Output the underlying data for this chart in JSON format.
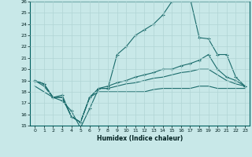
{
  "xlabel": "Humidex (Indice chaleur)",
  "background_color": "#c8e8e8",
  "grid_color": "#b0d4d4",
  "line_color": "#1a6b6b",
  "xlim": [
    -0.5,
    23.5
  ],
  "ylim": [
    15,
    26
  ],
  "yticks": [
    15,
    16,
    17,
    18,
    19,
    20,
    21,
    22,
    23,
    24,
    25,
    26
  ],
  "xticks": [
    0,
    1,
    2,
    3,
    4,
    5,
    6,
    7,
    8,
    9,
    10,
    11,
    12,
    13,
    14,
    15,
    16,
    17,
    18,
    19,
    20,
    21,
    22,
    23
  ],
  "line1_x": [
    0,
    1,
    2,
    3,
    4,
    5,
    6,
    7,
    8,
    9,
    10,
    11,
    12,
    13,
    14,
    15,
    16,
    17,
    18,
    19,
    20,
    21,
    22,
    23
  ],
  "line1_y": [
    19.0,
    18.7,
    17.5,
    17.2,
    16.3,
    14.8,
    16.5,
    18.3,
    18.3,
    21.3,
    22.0,
    23.0,
    23.5,
    24.0,
    24.8,
    26.0,
    26.5,
    26.3,
    22.8,
    22.7,
    21.3,
    21.3,
    19.3,
    18.5
  ],
  "line2_x": [
    0,
    1,
    2,
    3,
    4,
    5,
    6,
    7,
    8,
    9,
    10,
    11,
    12,
    13,
    14,
    15,
    16,
    17,
    18,
    19,
    20,
    21,
    22,
    23
  ],
  "line2_y": [
    19.0,
    18.7,
    17.5,
    17.7,
    15.8,
    15.3,
    17.5,
    18.3,
    18.5,
    18.8,
    19.0,
    19.3,
    19.5,
    19.7,
    20.0,
    20.0,
    20.3,
    20.5,
    20.8,
    21.3,
    20.0,
    19.3,
    19.0,
    18.5
  ],
  "line3_x": [
    0,
    1,
    2,
    3,
    4,
    5,
    6,
    7,
    8,
    9,
    10,
    11,
    12,
    13,
    14,
    15,
    16,
    17,
    18,
    19,
    20,
    21,
    22,
    23
  ],
  "line3_y": [
    19.0,
    18.5,
    17.5,
    17.5,
    15.8,
    15.3,
    17.5,
    18.3,
    18.3,
    18.5,
    18.7,
    18.8,
    19.0,
    19.2,
    19.3,
    19.5,
    19.7,
    19.8,
    20.0,
    20.0,
    19.5,
    19.0,
    18.7,
    18.5
  ],
  "line4_x": [
    0,
    1,
    2,
    3,
    4,
    5,
    6,
    7,
    8,
    9,
    10,
    11,
    12,
    13,
    14,
    15,
    16,
    17,
    18,
    19,
    20,
    21,
    22,
    23
  ],
  "line4_y": [
    18.5,
    18.0,
    17.5,
    17.5,
    15.8,
    15.3,
    17.5,
    18.0,
    18.0,
    18.0,
    18.0,
    18.0,
    18.0,
    18.2,
    18.3,
    18.3,
    18.3,
    18.3,
    18.5,
    18.5,
    18.3,
    18.3,
    18.3,
    18.3
  ]
}
